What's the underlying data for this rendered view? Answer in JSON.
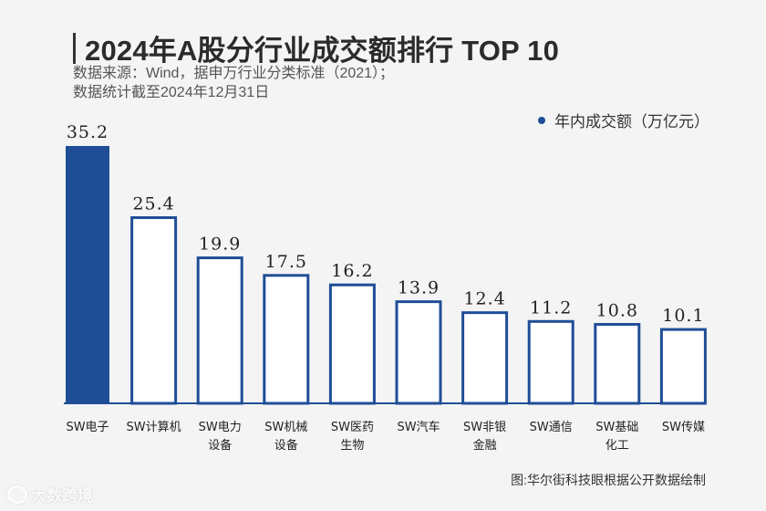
{
  "header": {
    "title": "2024年A股分行业成交额排行 TOP 10",
    "subtitle_line1": "数据来源：Wind，据申万行业分类标准（2021）；",
    "subtitle_line2": "数据统计截至2024年12月31日"
  },
  "legend": {
    "label": "年内成交额（万亿元）"
  },
  "source_note": "图:华尔街科技眼根据公开数据绘制",
  "watermark": "大数跨境",
  "colors": {
    "accent": "#1f4e97",
    "bar_fill_default": "#ffffff",
    "axis": "#1f4e97"
  },
  "chart_data": {
    "type": "bar",
    "title": "2024年A股分行业成交额排行 TOP 10",
    "series_name": "年内成交额（万亿元）",
    "categories": [
      "SW电子",
      "SW计算机",
      "SW电力设备",
      "SW机械设备",
      "SW医药生物",
      "SW汽车",
      "SW非银金融",
      "SW通信",
      "SW基础化工",
      "SW传媒"
    ],
    "category_lines": [
      [
        "SW电子"
      ],
      [
        "SW计算机"
      ],
      [
        "SW电力",
        "设备"
      ],
      [
        "SW机械",
        "设备"
      ],
      [
        "SW医药",
        "生物"
      ],
      [
        "SW汽车"
      ],
      [
        "SW非银",
        "金融"
      ],
      [
        "SW通信"
      ],
      [
        "SW基础",
        "化工"
      ],
      [
        "SW传媒"
      ]
    ],
    "values": [
      35.2,
      25.4,
      19.9,
      17.5,
      16.2,
      13.9,
      12.4,
      11.2,
      10.8,
      10.1
    ],
    "value_labels": [
      "35.2",
      "25.4",
      "19.9",
      "17.5",
      "16.2",
      "13.9",
      "12.4",
      "11.2",
      "10.8",
      "10.1"
    ],
    "highlight_index": 0,
    "xlabel": "",
    "ylabel": "",
    "ylim": [
      0,
      35.2
    ],
    "legend_position": "top-right",
    "grid": false
  }
}
